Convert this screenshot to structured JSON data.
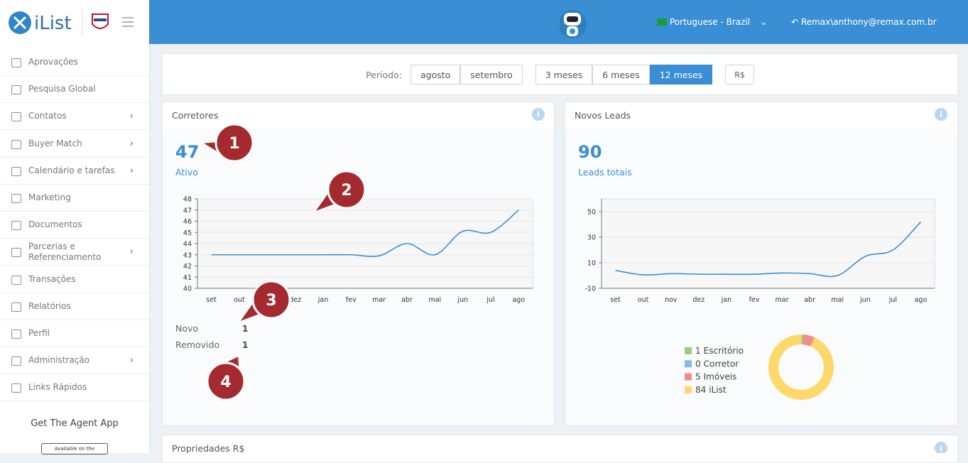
{
  "header": {
    "logo": "iList",
    "language": "Portuguese - Brazil",
    "user": "Remax\\anthony@remax.com.br"
  },
  "sidebar": {
    "items": [
      {
        "label": "Aprovações"
      },
      {
        "label": "Pesquisa Global"
      },
      {
        "label": "Contatos",
        "submenu": true
      },
      {
        "label": "Buyer Match",
        "submenu": true
      },
      {
        "label": "Calendário e tarefas",
        "submenu": true
      },
      {
        "label": "Marketing"
      },
      {
        "label": "Documentos"
      },
      {
        "label": "Parcerias e Referenciamento",
        "submenu": true
      },
      {
        "label": "Transações"
      },
      {
        "label": "Relatórios"
      },
      {
        "label": "Perfil"
      },
      {
        "label": "Administração",
        "submenu": true
      },
      {
        "label": "Links Rápidos"
      }
    ],
    "app_title": "Get The Agent App",
    "app_badge": "Available on the"
  },
  "filters": {
    "label": "Período:",
    "months": [
      "agosto",
      "setembro"
    ],
    "ranges": [
      "3 meses",
      "6 meses",
      "12 meses"
    ],
    "active_range": 2,
    "currency": "R$"
  },
  "cards": [
    {
      "title": "Corretores",
      "total": 47,
      "total_label": "Ativo",
      "stats": [
        {
          "label": "Novo",
          "value": 1
        },
        {
          "label": "Removido",
          "value": 1
        }
      ]
    },
    {
      "title": "Novos Leads",
      "total": 90,
      "total_label": "Leads totais"
    },
    {
      "title": "Propriedades R$"
    }
  ],
  "callouts": [
    1,
    2,
    3,
    4
  ],
  "chart_data": [
    {
      "type": "line",
      "categories": [
        "set",
        "out",
        "nov",
        "dez",
        "jan",
        "fev",
        "mar",
        "abr",
        "mai",
        "jun",
        "jul",
        "ago"
      ],
      "values": [
        43,
        43,
        43,
        43,
        43,
        43,
        42.9,
        44,
        43,
        45.1,
        45,
        47
      ],
      "color": "#3a8fd4",
      "ylim": [
        40,
        48
      ],
      "yticks": [
        40,
        41,
        42,
        43,
        44,
        45,
        46,
        47,
        48
      ],
      "grid": true
    },
    {
      "type": "line",
      "categories": [
        "set",
        "out",
        "nov",
        "dez",
        "jan",
        "fev",
        "mar",
        "abr",
        "mai",
        "jun",
        "jul",
        "ago"
      ],
      "values": [
        4,
        0.5,
        1.5,
        1,
        1,
        1,
        2,
        1.5,
        0,
        15,
        20,
        42
      ],
      "color": "#3a8fd4",
      "ylim": [
        -10,
        60
      ],
      "yticks": [
        -10,
        10,
        30,
        50
      ],
      "grid": true
    },
    {
      "type": "pie",
      "categories": [
        "Escritório",
        "Corretor",
        "Imóveis",
        "iList"
      ],
      "values": [
        1,
        0,
        5,
        84
      ],
      "colors": [
        "#9ccc7c",
        "#8ab8e2",
        "#f28b8b",
        "#fdd86b"
      ],
      "donut": true
    }
  ]
}
